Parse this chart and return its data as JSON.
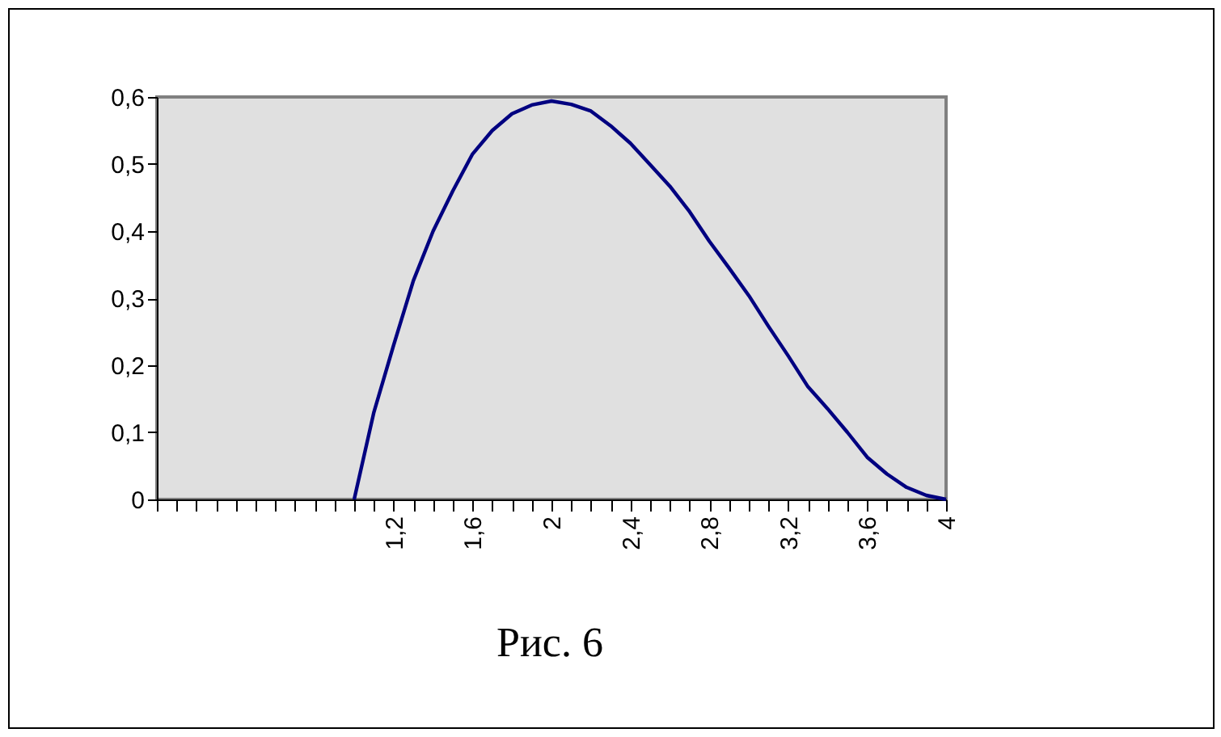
{
  "chart_data": {
    "type": "line",
    "x": [
      1.0,
      1.1,
      1.2,
      1.3,
      1.4,
      1.5,
      1.6,
      1.7,
      1.8,
      1.9,
      2.0,
      2.1,
      2.2,
      2.3,
      2.4,
      2.5,
      2.6,
      2.7,
      2.8,
      2.9,
      3.0,
      3.1,
      3.2,
      3.3,
      3.4,
      3.5,
      3.6,
      3.7,
      3.8,
      3.9,
      4.0
    ],
    "series": [
      {
        "color": "#000080",
        "values": [
          0,
          0.13,
          0.23,
          0.326,
          0.4,
          0.46,
          0.515,
          0.55,
          0.575,
          0.588,
          0.594,
          0.589,
          0.579,
          0.557,
          0.531,
          0.499,
          0.467,
          0.429,
          0.385,
          0.345,
          0.304,
          0.258,
          0.214,
          0.168,
          0.135,
          0.1,
          0.063,
          0.038,
          0.018,
          0.006,
          0
        ]
      }
    ],
    "xlim": [
      0,
      4
    ],
    "xticks": [
      {
        "value": 0,
        "label": null
      },
      {
        "value": 0.1,
        "label": null
      },
      {
        "value": 0.2,
        "label": null
      },
      {
        "value": 0.3,
        "label": null
      },
      {
        "value": 0.4,
        "label": null
      },
      {
        "value": 0.5,
        "label": null
      },
      {
        "value": 0.6,
        "label": null
      },
      {
        "value": 0.7,
        "label": null
      },
      {
        "value": 0.8,
        "label": null
      },
      {
        "value": 0.9,
        "label": null
      },
      {
        "value": 1,
        "label": null
      },
      {
        "value": 1.1,
        "label": null
      },
      {
        "value": 1.2,
        "label": "1,2"
      },
      {
        "value": 1.3,
        "label": null
      },
      {
        "value": 1.4,
        "label": null
      },
      {
        "value": 1.5,
        "label": null
      },
      {
        "value": 1.6,
        "label": "1,6"
      },
      {
        "value": 1.7,
        "label": null
      },
      {
        "value": 1.8,
        "label": null
      },
      {
        "value": 1.9,
        "label": null
      },
      2,
      {
        "value": 2.1,
        "label": null
      },
      {
        "value": 2.2,
        "label": null
      },
      {
        "value": 2.3,
        "label": null
      },
      {
        "value": 2.4,
        "label": "2,4"
      },
      {
        "value": 2.5,
        "label": null
      },
      {
        "value": 2.6,
        "label": null
      },
      {
        "value": 2.7,
        "label": null
      },
      {
        "value": 2.8,
        "label": "2,8"
      },
      {
        "value": 2.9,
        "label": null
      },
      {
        "value": 3,
        "label": null
      },
      {
        "value": 3.1,
        "label": null
      },
      {
        "value": 3.2,
        "label": "3,2"
      },
      {
        "value": 3.3,
        "label": null
      },
      {
        "value": 3.4,
        "label": null
      },
      {
        "value": 3.5,
        "label": null
      },
      {
        "value": 3.6,
        "label": "3,6"
      },
      {
        "value": 3.7,
        "label": null
      },
      {
        "value": 3.8,
        "label": null
      },
      {
        "value": 3.9,
        "label": null
      },
      4
    ],
    "ylim": [
      0,
      0.6
    ],
    "yticks": [
      0,
      {
        "value": 0.1,
        "label": "0,1"
      },
      {
        "value": 0.2,
        "label": "0,2"
      },
      {
        "value": 0.3,
        "label": "0,3"
      },
      {
        "value": 0.4,
        "label": "0,4"
      },
      {
        "value": 0.5,
        "label": "0,5"
      },
      {
        "value": 0.6,
        "label": "0,6"
      }
    ],
    "grid": false,
    "marker": "none",
    "annotations": [
      "Рис. 6"
    ]
  }
}
